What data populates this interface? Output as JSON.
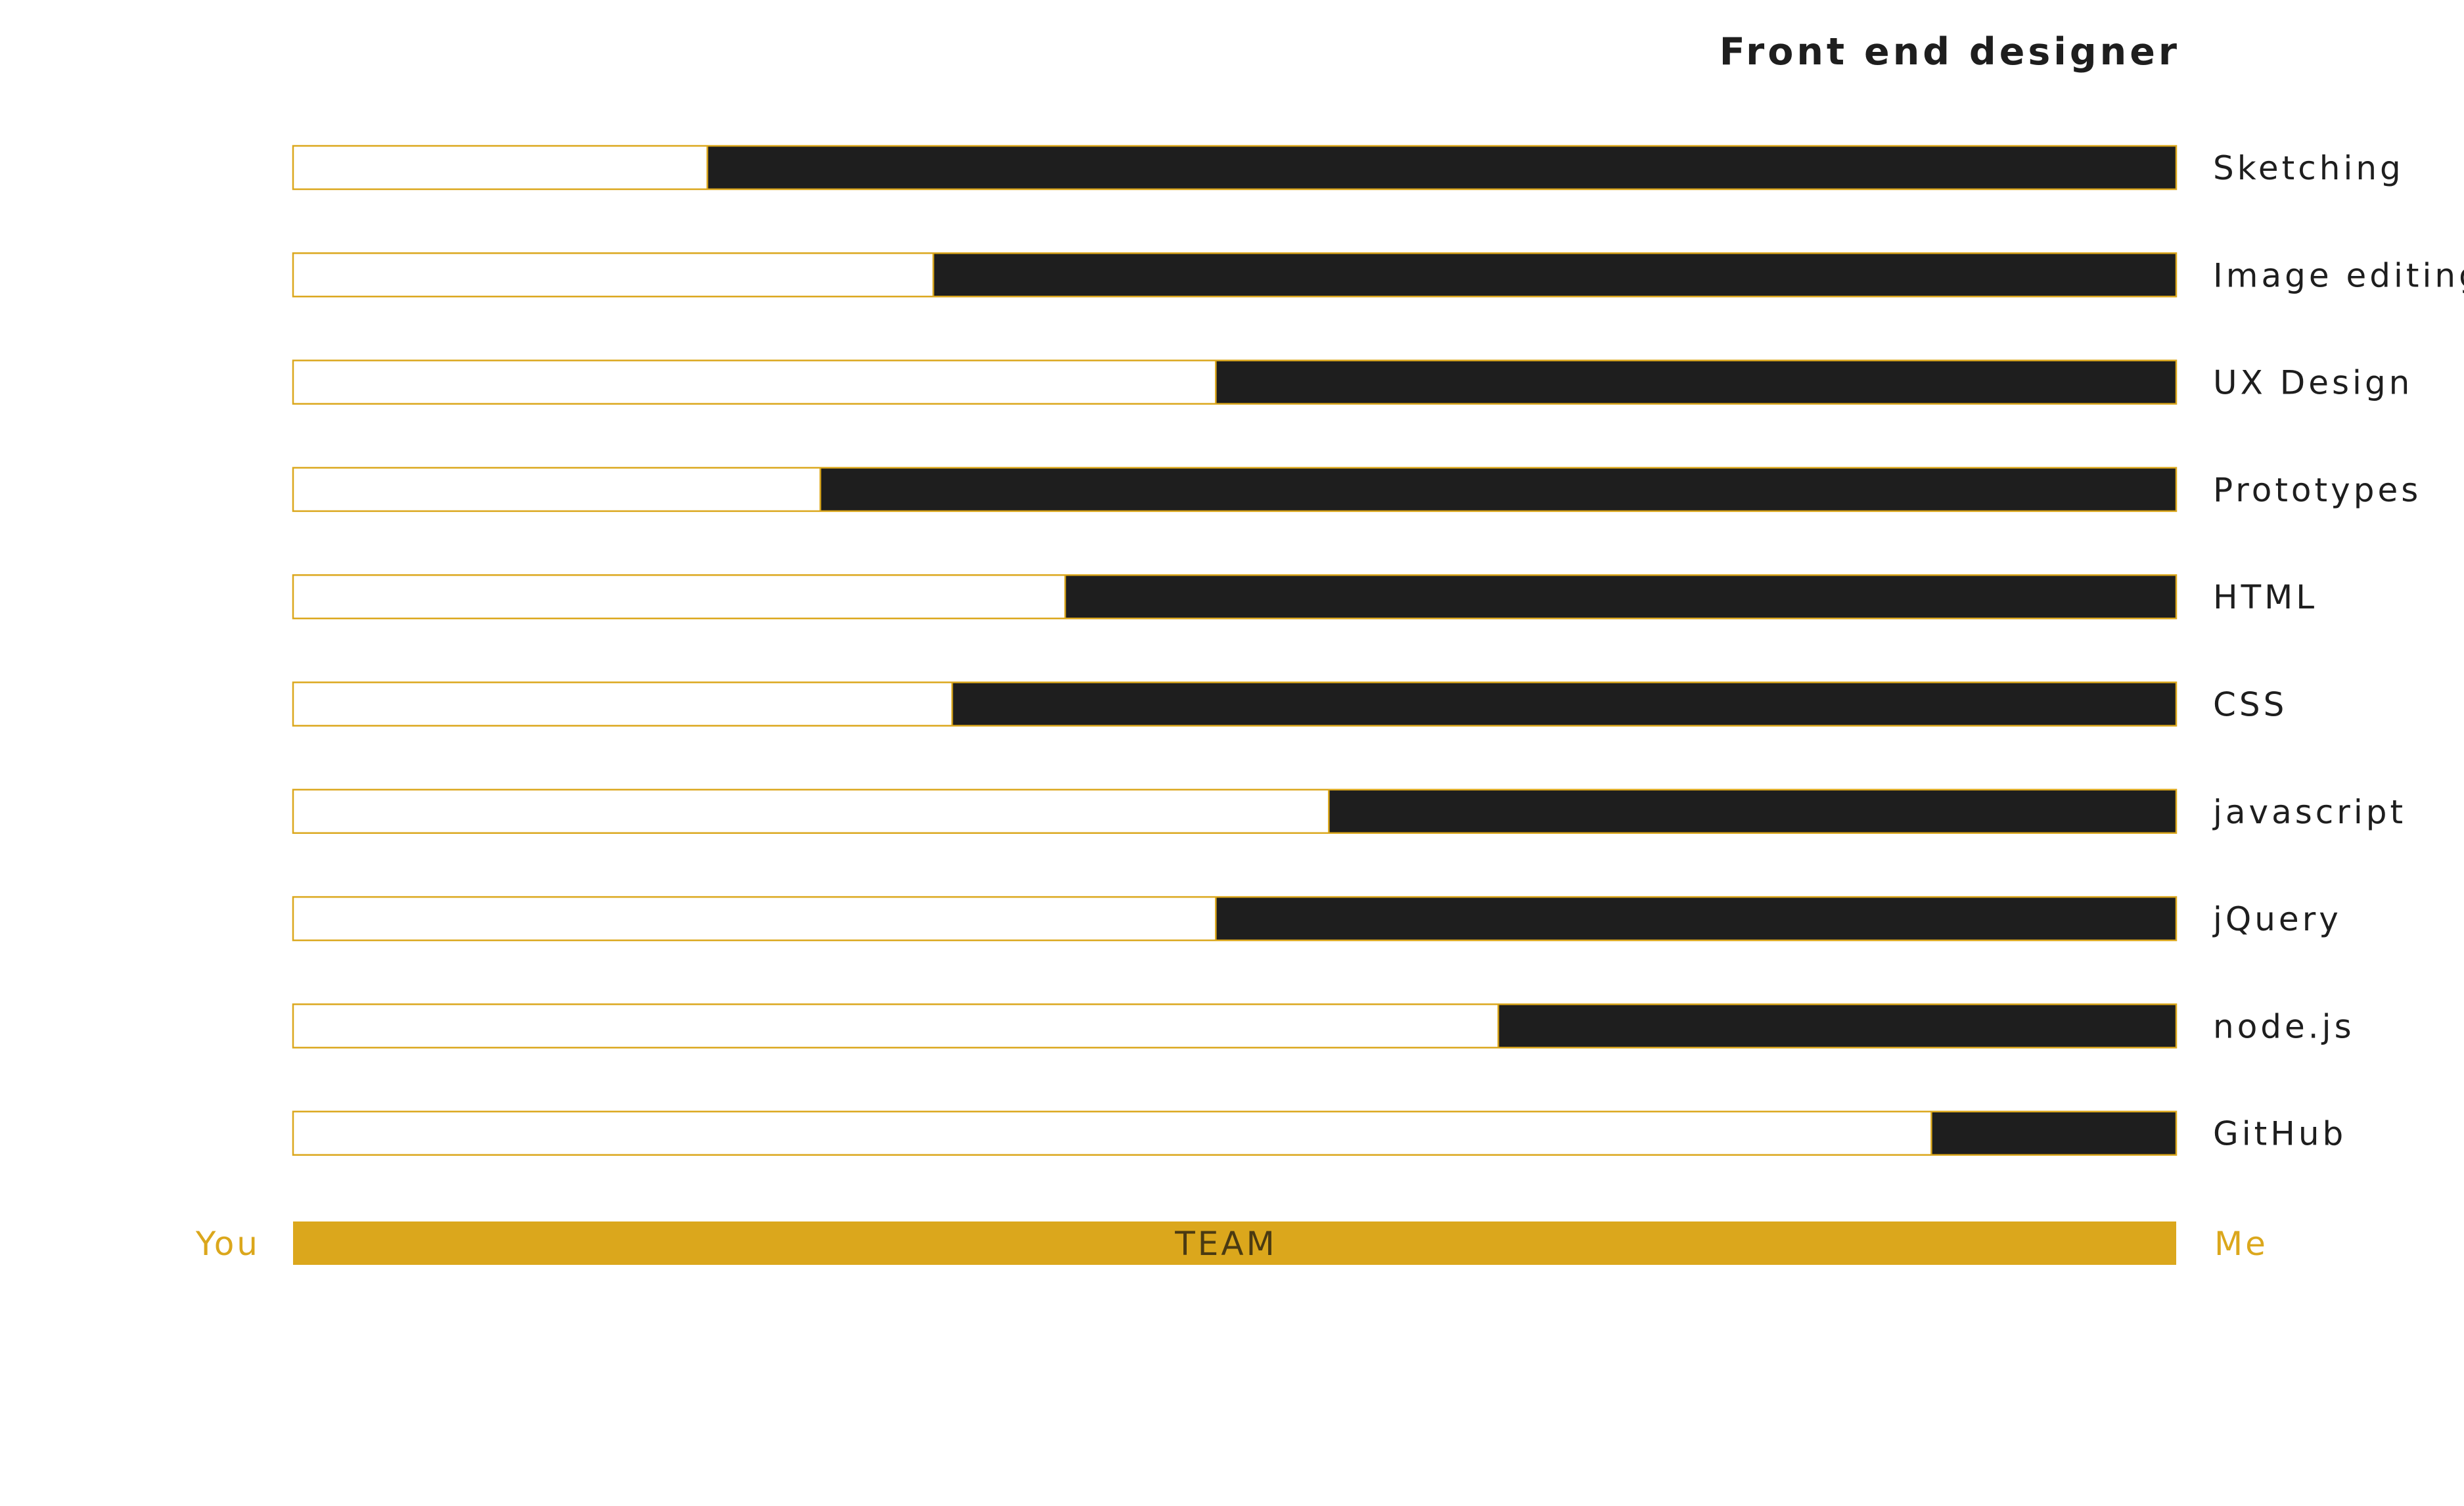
{
  "chart_data": {
    "type": "bar",
    "orientation": "horizontal",
    "stacked": true,
    "title": "Front end designer",
    "categories": [
      "Sketching",
      "Image editing",
      "UX Design",
      "Prototypes",
      "HTML",
      "CSS",
      "javascript",
      "jQuery",
      "node.js",
      "GitHub"
    ],
    "values": [
      22,
      34,
      49,
      28,
      41,
      35,
      55,
      49,
      64,
      87
    ],
    "xlim": [
      0,
      100
    ],
    "scale": {
      "left_label": "You",
      "right_label": "Me",
      "bar_label": "TEAM"
    },
    "grid": false,
    "legend": "none"
  },
  "colors": {
    "you_fill": "#ffffff",
    "me_fill": "#1e1e1e",
    "outline": "#dba71c",
    "accent": "#dba71c",
    "team_text": "#4a3a12",
    "text": "#1e1e1e"
  }
}
